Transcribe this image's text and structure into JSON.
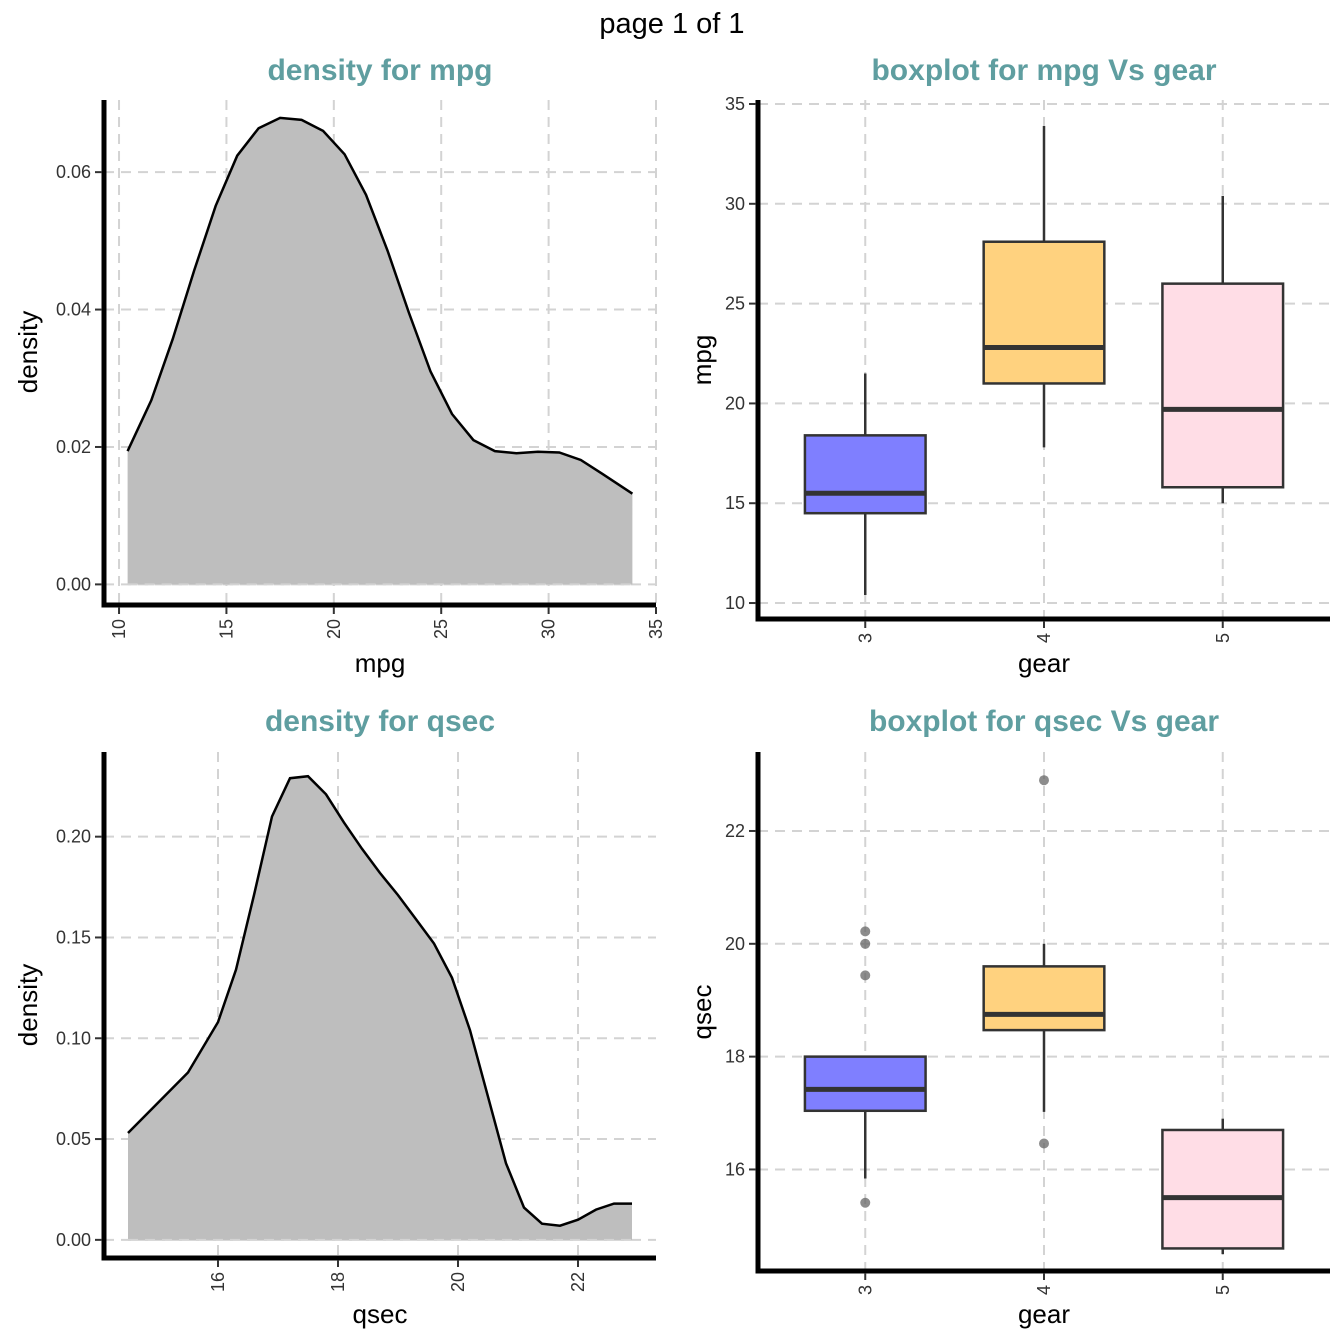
{
  "page": {
    "title": "page 1 of 1"
  },
  "chart_data": [
    {
      "type": "area",
      "title": "density for mpg",
      "xlabel": "mpg",
      "ylabel": "density",
      "xlim": [
        9.3,
        35.0
      ],
      "ylim": [
        -0.003,
        0.0705
      ],
      "xticks": [
        10,
        15,
        20,
        25,
        30,
        35
      ],
      "yticks": [
        0.0,
        0.02,
        0.04,
        0.06
      ],
      "xtick_labels": [
        "10",
        "15",
        "20",
        "25",
        "30",
        "35"
      ],
      "ytick_labels": [
        "0.00",
        "0.02",
        "0.04",
        "0.06"
      ],
      "fill": "#bebebe",
      "grid": true,
      "x": [
        10.4,
        11.5,
        12.5,
        13.5,
        14.5,
        15.5,
        16.5,
        17.5,
        18.5,
        19.5,
        20.5,
        21.5,
        22.5,
        23.5,
        24.5,
        25.5,
        26.5,
        27.5,
        28.5,
        29.5,
        30.5,
        31.5,
        32.5,
        33.9
      ],
      "y": [
        0.0194,
        0.0268,
        0.0357,
        0.0457,
        0.0551,
        0.0624,
        0.0664,
        0.0679,
        0.0676,
        0.066,
        0.0626,
        0.0567,
        0.0486,
        0.0395,
        0.031,
        0.0248,
        0.021,
        0.0194,
        0.0191,
        0.0193,
        0.0192,
        0.0181,
        0.0161,
        0.0132
      ]
    },
    {
      "type": "boxplot",
      "title": "boxplot for mpg Vs gear",
      "xlabel": "gear",
      "ylabel": "mpg",
      "ylim": [
        9.2,
        35.2
      ],
      "yticks": [
        10,
        15,
        20,
        25,
        30,
        35
      ],
      "ytick_labels": [
        "10",
        "15",
        "20",
        "25",
        "30",
        "35"
      ],
      "grid": true,
      "categories": [
        "3",
        "4",
        "5"
      ],
      "boxes": [
        {
          "category": "3",
          "color": "#7f7fff",
          "min": 10.4,
          "q1": 14.5,
          "median": 15.5,
          "q3": 18.4,
          "max": 21.5,
          "outliers": []
        },
        {
          "category": "4",
          "color": "#ffd27f",
          "min": 17.8,
          "q1": 21.0,
          "median": 22.8,
          "q3": 28.1,
          "max": 33.9,
          "outliers": []
        },
        {
          "category": "5",
          "color": "#ffdde6",
          "min": 15.0,
          "q1": 15.8,
          "median": 19.7,
          "q3": 26.0,
          "max": 30.4,
          "outliers": []
        }
      ]
    },
    {
      "type": "area",
      "title": "density for qsec",
      "xlabel": "qsec",
      "ylabel": "density",
      "xlim": [
        14.1,
        23.3
      ],
      "ylim": [
        -0.009,
        0.242
      ],
      "xticks": [
        16,
        18,
        20,
        22
      ],
      "yticks": [
        0.0,
        0.05,
        0.1,
        0.15,
        0.2
      ],
      "xtick_labels": [
        "16",
        "18",
        "20",
        "22"
      ],
      "ytick_labels": [
        "0.00",
        "0.05",
        "0.10",
        "0.15",
        "0.20"
      ],
      "fill": "#bebebe",
      "grid": true,
      "x": [
        14.5,
        15.0,
        15.5,
        16.0,
        16.3,
        16.6,
        16.9,
        17.2,
        17.5,
        17.8,
        18.1,
        18.4,
        18.7,
        19.0,
        19.3,
        19.6,
        19.9,
        20.2,
        20.5,
        20.8,
        21.1,
        21.4,
        21.7,
        22.0,
        22.3,
        22.6,
        22.9
      ],
      "y": [
        0.053,
        0.068,
        0.083,
        0.108,
        0.134,
        0.171,
        0.21,
        0.229,
        0.23,
        0.221,
        0.207,
        0.194,
        0.182,
        0.171,
        0.159,
        0.147,
        0.13,
        0.104,
        0.071,
        0.038,
        0.016,
        0.008,
        0.007,
        0.01,
        0.015,
        0.018,
        0.018
      ]
    },
    {
      "type": "boxplot",
      "title": "boxplot for qsec Vs gear",
      "xlabel": "gear",
      "ylabel": "qsec",
      "ylim": [
        14.2,
        23.4
      ],
      "yticks": [
        16,
        18,
        20,
        22
      ],
      "ytick_labels": [
        "16",
        "18",
        "20",
        "22"
      ],
      "grid": true,
      "categories": [
        "3",
        "4",
        "5"
      ],
      "boxes": [
        {
          "category": "3",
          "color": "#7f7fff",
          "min": 15.84,
          "q1": 17.04,
          "median": 17.42,
          "q3": 18.0,
          "max": 18.0,
          "outliers": [
            15.41,
            19.44,
            20.0,
            20.22
          ]
        },
        {
          "category": "4",
          "color": "#ffd27f",
          "min": 17.02,
          "q1": 18.47,
          "median": 18.75,
          "q3": 19.6,
          "max": 20.0,
          "outliers": [
            16.46,
            22.9
          ]
        },
        {
          "category": "5",
          "color": "#ffdde6",
          "min": 14.5,
          "q1": 14.6,
          "median": 15.5,
          "q3": 16.7,
          "max": 16.9,
          "outliers": []
        }
      ]
    }
  ]
}
